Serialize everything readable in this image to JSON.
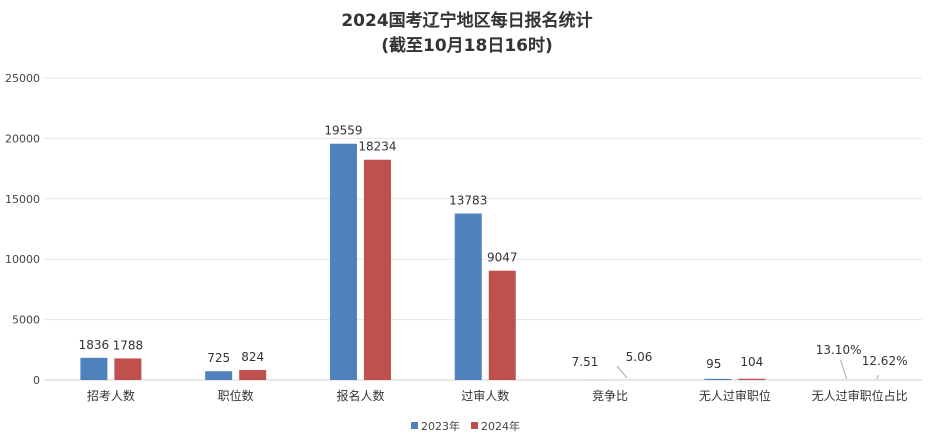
{
  "chart_data": {
    "type": "bar",
    "title": "2024国考辽宁地区每日报名统计",
    "subtitle": "(截至10月18日16时)",
    "categories": [
      "招考人数",
      "职位数",
      "报名人数",
      "过审人数",
      "竞争比",
      "无人过审职位",
      "无人过审职位占比"
    ],
    "series": [
      {
        "name": "2023年",
        "color": "#4f81bd",
        "values": [
          1836,
          725,
          19559,
          13783,
          7.51,
          95,
          0.131
        ],
        "labels": [
          "1836",
          "725",
          "19559",
          "13783",
          "7.51",
          "95",
          "13.10%"
        ]
      },
      {
        "name": "2024年",
        "color": "#c0504d",
        "values": [
          1788,
          824,
          18234,
          9047,
          5.06,
          104,
          0.1262
        ],
        "labels": [
          "1788",
          "824",
          "18234",
          "9047",
          "5.06",
          "104",
          "12.62%"
        ]
      }
    ],
    "yticks": [
      "0",
      "5000",
      "10000",
      "15000",
      "20000",
      "25000"
    ],
    "ylim": [
      0,
      25000
    ],
    "grid": true,
    "legend": "bottom"
  }
}
